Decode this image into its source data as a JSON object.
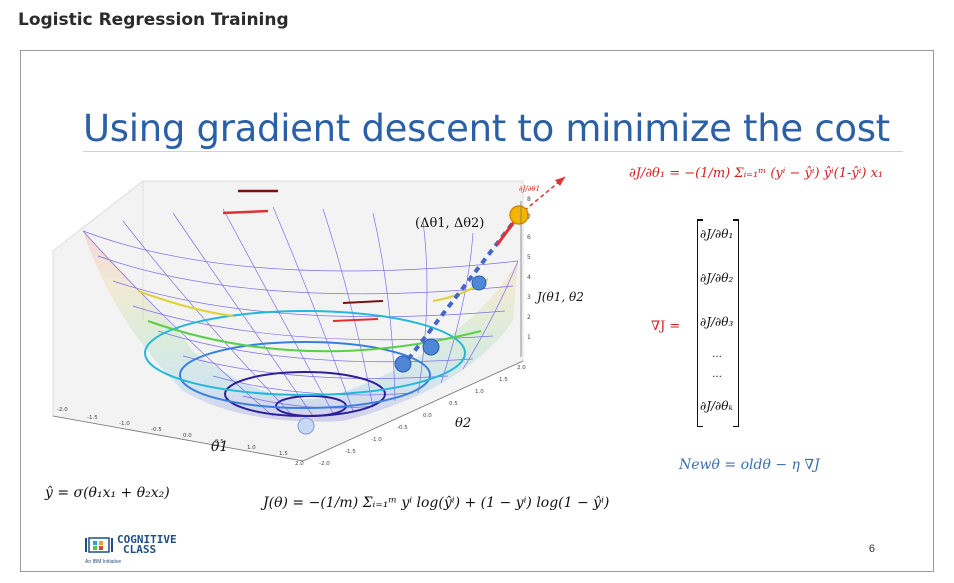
{
  "page": {
    "title": "Logistic Regression Training"
  },
  "slide": {
    "title": "Using gradient descent to minimize the cost",
    "number": "6",
    "plot": {
      "step_label": "(Δθ1, Δθ2)",
      "z_label": "J(θ1, θ2)",
      "x_label": "θ1",
      "y_label": "θ2",
      "grad_label": "∂J/∂θ1",
      "x_ticks": [
        "-2.0",
        "-1.5",
        "-1.0",
        "-0.5",
        "0.0",
        "0.5",
        "1.0",
        "1.5",
        "2.0"
      ],
      "y_ticks": [
        "-2.0",
        "-1.5",
        "-1.0",
        "-0.5",
        "0.0",
        "0.5",
        "1.0",
        "1.5",
        "2.0"
      ],
      "z_ticks": [
        "1",
        "2",
        "3",
        "4",
        "5",
        "6",
        "7",
        "8"
      ]
    },
    "formulas": {
      "partial_derivative": "∂J/∂θ₁ = −(1/m) Σᵢ₌₁ᵐ (yⁱ − ŷⁱ) ŷⁱ(1-ŷⁱ) x₁",
      "gradient_label": "∇J  =",
      "gradient_vector": [
        "∂J/∂θ₁",
        "∂J/∂θ₂",
        "∂J/∂θ₃",
        "…",
        "…",
        "∂J/∂θₖ"
      ],
      "update_rule": "Newθ = oldθ − η ∇J",
      "prediction": "ŷ = σ(θ₁x₁ + θ₂x₂)",
      "cost": "J(θ) = −(1/m) Σᵢ₌₁ᵐ yⁱ log(ŷⁱ) + (1 − yⁱ) log(1 − ŷⁱ)"
    },
    "logo": {
      "line1": "COGNITIVE",
      "line2": "CLASS",
      "tagline": "An IBM Initiative"
    }
  }
}
